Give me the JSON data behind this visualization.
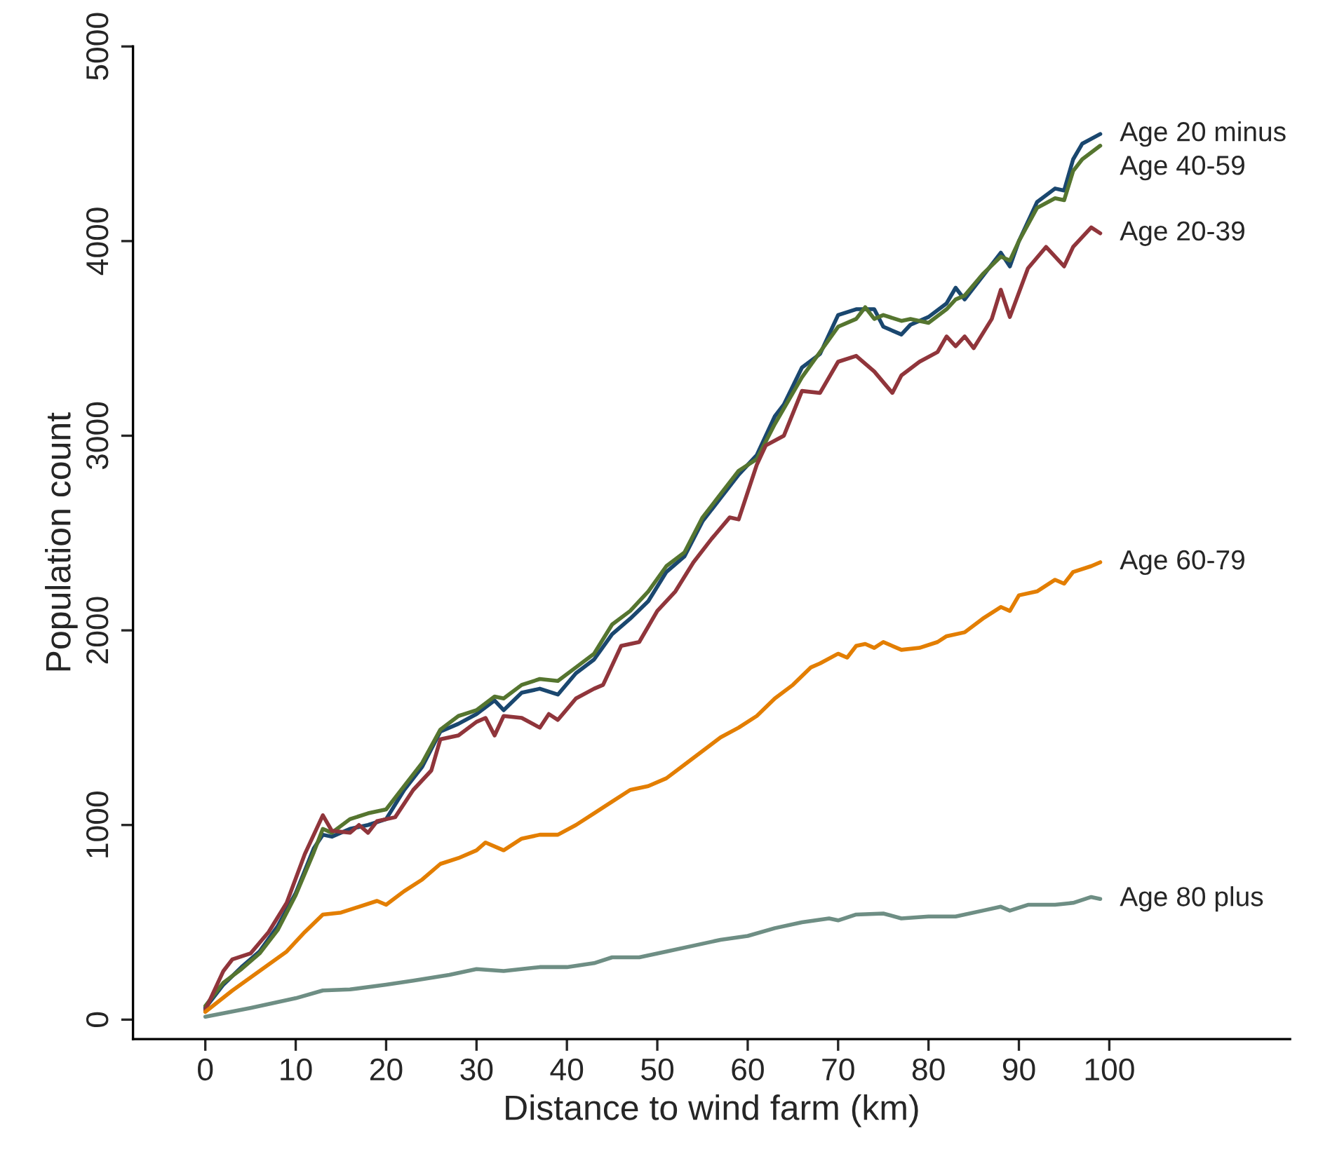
{
  "chart_data": {
    "type": "line",
    "xlabel": "Distance to wind farm (km)",
    "ylabel": "Population count",
    "xlim": [
      -8,
      120
    ],
    "ylim": [
      -100,
      5000
    ],
    "xticks": [
      0,
      10,
      20,
      30,
      40,
      50,
      60,
      70,
      80,
      90,
      100
    ],
    "yticks": [
      0,
      1000,
      2000,
      3000,
      4000,
      5000
    ],
    "grid": false,
    "legend": false,
    "series": [
      {
        "name": "Age 20 minus",
        "color": "#1a476f",
        "x": [
          0,
          2,
          4,
          6,
          8,
          10,
          12,
          13,
          14,
          16,
          18,
          20,
          22,
          24,
          26,
          28,
          30,
          32,
          33,
          35,
          37,
          39,
          41,
          43,
          45,
          47,
          49,
          51,
          53,
          55,
          57,
          59,
          61,
          63,
          64,
          66,
          68,
          70,
          72,
          74,
          75,
          77,
          78,
          80,
          82,
          83,
          84,
          86,
          88,
          89,
          90,
          92,
          94,
          95,
          96,
          97,
          99
        ],
        "values": [
          60,
          180,
          270,
          350,
          480,
          650,
          880,
          950,
          940,
          980,
          1000,
          1030,
          1180,
          1300,
          1480,
          1520,
          1570,
          1640,
          1590,
          1680,
          1700,
          1670,
          1780,
          1850,
          1980,
          2060,
          2150,
          2300,
          2380,
          2560,
          2680,
          2800,
          2900,
          3100,
          3160,
          3350,
          3420,
          3620,
          3650,
          3650,
          3560,
          3520,
          3570,
          3610,
          3680,
          3760,
          3700,
          3820,
          3940,
          3870,
          4000,
          4200,
          4270,
          4260,
          4420,
          4500,
          4550
        ]
      },
      {
        "name": "Age 40-59",
        "color": "#55752f",
        "x": [
          0,
          2,
          4,
          6,
          8,
          10,
          12,
          13,
          14,
          16,
          18,
          20,
          22,
          24,
          26,
          28,
          30,
          32,
          33,
          35,
          37,
          39,
          41,
          43,
          45,
          47,
          49,
          51,
          53,
          55,
          57,
          59,
          61,
          63,
          64,
          66,
          68,
          70,
          72,
          73,
          74,
          75,
          77,
          78,
          80,
          82,
          83,
          84,
          86,
          88,
          89,
          90,
          92,
          94,
          95,
          96,
          97,
          99
        ],
        "values": [
          70,
          190,
          260,
          340,
          460,
          640,
          860,
          980,
          960,
          1030,
          1060,
          1080,
          1200,
          1320,
          1490,
          1560,
          1590,
          1660,
          1650,
          1720,
          1750,
          1740,
          1810,
          1880,
          2030,
          2100,
          2200,
          2330,
          2400,
          2580,
          2700,
          2820,
          2880,
          3060,
          3140,
          3300,
          3430,
          3560,
          3600,
          3660,
          3600,
          3620,
          3590,
          3600,
          3580,
          3650,
          3700,
          3720,
          3830,
          3920,
          3900,
          4000,
          4170,
          4220,
          4210,
          4360,
          4420,
          4490
        ]
      },
      {
        "name": "Age 20-39",
        "color": "#90353b",
        "x": [
          0,
          2,
          3,
          5,
          7,
          9,
          11,
          13,
          14,
          16,
          17,
          18,
          19,
          21,
          23,
          25,
          26,
          28,
          30,
          31,
          32,
          33,
          35,
          37,
          38,
          39,
          41,
          43,
          44,
          46,
          48,
          50,
          52,
          54,
          56,
          58,
          59,
          61,
          62,
          64,
          66,
          68,
          70,
          72,
          74,
          76,
          77,
          79,
          81,
          82,
          83,
          84,
          85,
          87,
          88,
          89,
          91,
          93,
          95,
          96,
          98,
          99
        ],
        "values": [
          50,
          250,
          310,
          340,
          450,
          600,
          850,
          1050,
          970,
          960,
          1000,
          960,
          1020,
          1040,
          1180,
          1280,
          1440,
          1460,
          1530,
          1550,
          1460,
          1560,
          1550,
          1500,
          1570,
          1540,
          1650,
          1700,
          1720,
          1920,
          1940,
          2100,
          2200,
          2350,
          2470,
          2580,
          2570,
          2850,
          2950,
          3000,
          3230,
          3220,
          3380,
          3410,
          3330,
          3220,
          3310,
          3380,
          3430,
          3510,
          3460,
          3510,
          3450,
          3600,
          3750,
          3610,
          3860,
          3970,
          3870,
          3970,
          4070,
          4040
        ]
      },
      {
        "name": "Age 60-79",
        "color": "#e37e00",
        "x": [
          0,
          3,
          6,
          9,
          11,
          13,
          15,
          17,
          19,
          20,
          22,
          24,
          26,
          28,
          30,
          31,
          33,
          35,
          37,
          39,
          41,
          43,
          45,
          47,
          49,
          51,
          53,
          55,
          57,
          59,
          61,
          63,
          65,
          67,
          68,
          70,
          71,
          72,
          73,
          74,
          75,
          77,
          79,
          81,
          82,
          84,
          86,
          88,
          89,
          90,
          92,
          94,
          95,
          96,
          98,
          99
        ],
        "values": [
          40,
          150,
          250,
          350,
          450,
          540,
          550,
          580,
          610,
          590,
          660,
          720,
          800,
          830,
          870,
          910,
          870,
          930,
          950,
          950,
          1000,
          1060,
          1120,
          1180,
          1200,
          1240,
          1310,
          1380,
          1450,
          1500,
          1560,
          1650,
          1720,
          1810,
          1830,
          1880,
          1860,
          1920,
          1930,
          1910,
          1940,
          1900,
          1910,
          1940,
          1970,
          1990,
          2060,
          2120,
          2100,
          2180,
          2200,
          2260,
          2240,
          2300,
          2330,
          2350
        ]
      },
      {
        "name": "Age 80 plus",
        "color": "#6e8e84",
        "x": [
          0,
          5,
          10,
          13,
          16,
          20,
          23,
          27,
          30,
          33,
          37,
          40,
          43,
          45,
          48,
          51,
          54,
          57,
          60,
          63,
          66,
          69,
          70,
          72,
          75,
          77,
          80,
          83,
          86,
          88,
          89,
          91,
          94,
          96,
          98,
          99
        ],
        "values": [
          15,
          60,
          110,
          150,
          155,
          180,
          200,
          230,
          260,
          250,
          270,
          270,
          290,
          320,
          320,
          350,
          380,
          410,
          430,
          470,
          500,
          520,
          510,
          540,
          545,
          520,
          530,
          530,
          560,
          580,
          560,
          590,
          590,
          600,
          630,
          620
        ]
      }
    ]
  }
}
